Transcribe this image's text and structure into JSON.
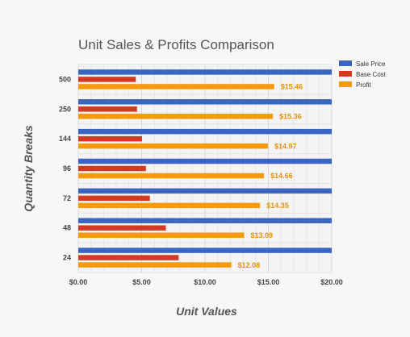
{
  "chart_data": {
    "type": "bar",
    "orientation": "horizontal",
    "title": "Unit Sales & Profits Comparison",
    "xlabel": "Unit Values",
    "ylabel": "Quantity Breaks",
    "categories": [
      "500",
      "250",
      "144",
      "96",
      "72",
      "48",
      "24"
    ],
    "xlim": [
      0,
      20
    ],
    "x_ticks": [
      "$0.00",
      "$5.00",
      "$10.00",
      "$15.00",
      "$20.00"
    ],
    "grid": true,
    "legend_position": "top-right",
    "series": [
      {
        "name": "Sale Price",
        "color": "#3a66c2",
        "values": [
          20,
          20,
          20,
          20,
          20,
          20,
          20
        ]
      },
      {
        "name": "Base Cost",
        "color": "#d43a22",
        "values": [
          4.54,
          4.64,
          5.03,
          5.34,
          5.65,
          6.91,
          7.92
        ]
      },
      {
        "name": "Profit",
        "color": "#f59a0b",
        "values": [
          15.46,
          15.36,
          14.97,
          14.66,
          14.35,
          13.09,
          12.08
        ],
        "data_labels": [
          "$15.46",
          "$15.36",
          "$14.97",
          "$14.66",
          "$14.35",
          "$13.09",
          "$12.08"
        ],
        "label_color": "#e8920a"
      }
    ]
  }
}
